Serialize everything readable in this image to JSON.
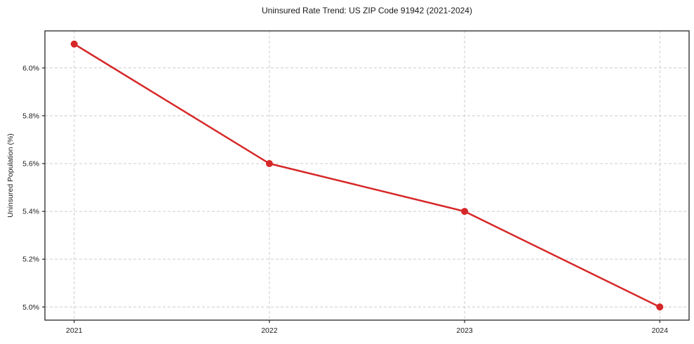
{
  "figure": {
    "background": "#ffffff",
    "text_color": "#1a1a1a",
    "spine_color": "#262626"
  },
  "chart_data": {
    "type": "line",
    "title": "Uninsured Rate Trend: US ZIP Code 91942 (2021-2024)",
    "xlabel": "",
    "ylabel": "Uninsured Population (%)",
    "x": [
      2021,
      2022,
      2023,
      2024
    ],
    "values": [
      6.1,
      5.6,
      5.4,
      5.0
    ],
    "xticks": {
      "values": [
        2021,
        2022,
        2023,
        2024
      ],
      "labels": [
        "2021",
        "2022",
        "2023",
        "2024"
      ]
    },
    "yticks": {
      "values": [
        5.0,
        5.2,
        5.4,
        5.6,
        5.8,
        6.0
      ],
      "labels": [
        "5.0%",
        "5.2%",
        "5.4%",
        "5.6%",
        "5.8%",
        "6.0%"
      ]
    },
    "xlim": [
      2020.85,
      2024.15
    ],
    "ylim": [
      4.945,
      6.155
    ],
    "grid": {
      "visible": true,
      "style": "dashed",
      "color": "#cccccc"
    },
    "legend_position": "none",
    "line_color": "#d62728",
    "marker": "circle",
    "marker_color": "#d62728"
  }
}
